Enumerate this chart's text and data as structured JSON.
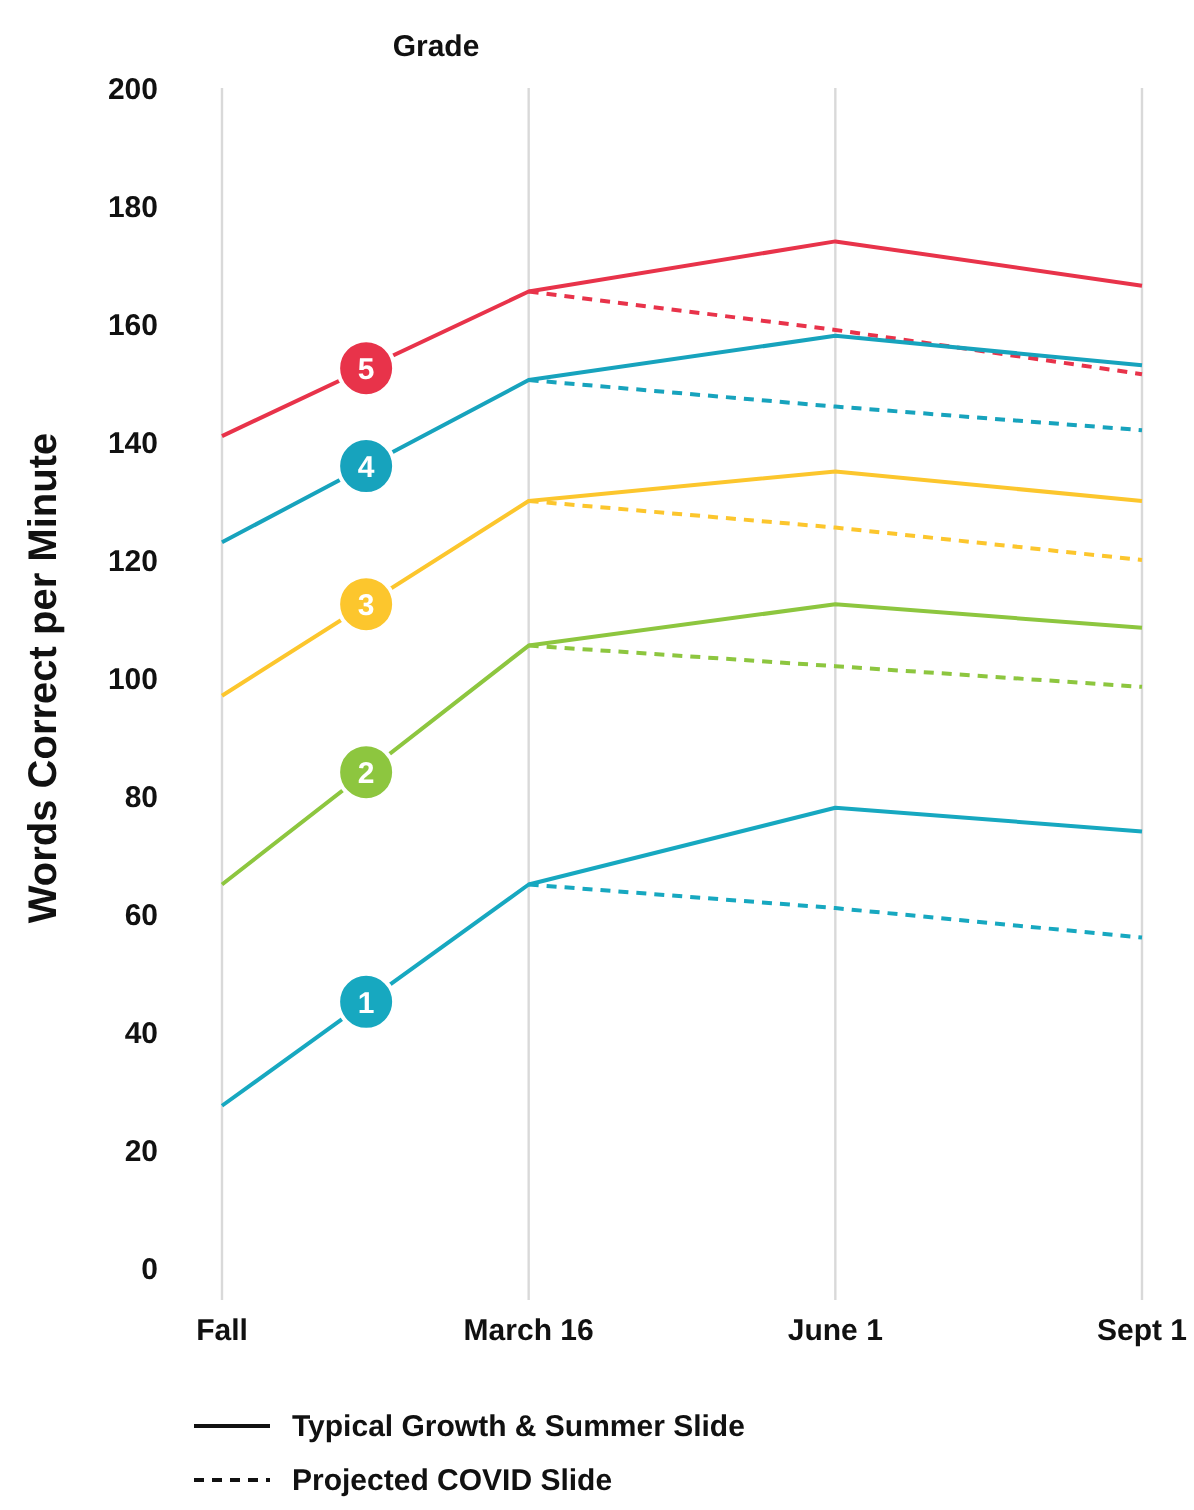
{
  "chart_data": {
    "type": "line",
    "legend_title": "Grade",
    "ylabel": "Words Correct per Minute",
    "categories": [
      "Fall",
      "March 16",
      "June 1",
      "Sept 1"
    ],
    "ylim": [
      0,
      200
    ],
    "yticks": [
      0,
      20,
      40,
      60,
      80,
      100,
      120,
      140,
      160,
      180,
      200
    ],
    "grid": "x",
    "marker": "none",
    "series": [
      {
        "name": "5",
        "color": "#e8334a",
        "values": [
          141,
          165.5,
          174,
          166.5
        ],
        "line_style": "solid"
      },
      {
        "color": "#e8334a",
        "values": [
          null,
          165.5,
          159,
          151.5
        ],
        "line_style": "dashed"
      },
      {
        "name": "4",
        "color": "#17a3bd",
        "values": [
          123,
          150.5,
          158,
          153
        ],
        "line_style": "solid"
      },
      {
        "color": "#17a3bd",
        "values": [
          null,
          150.5,
          146,
          142
        ],
        "line_style": "dashed"
      },
      {
        "name": "3",
        "color": "#fcc62d",
        "values": [
          97,
          130,
          135,
          130
        ],
        "line_style": "solid"
      },
      {
        "color": "#fcc62d",
        "values": [
          null,
          130,
          125.5,
          120
        ],
        "line_style": "dashed"
      },
      {
        "name": "2",
        "color": "#8dc63f",
        "values": [
          65,
          105.5,
          112.5,
          108.5
        ],
        "line_style": "solid"
      },
      {
        "color": "#8dc63f",
        "values": [
          null,
          105.5,
          102,
          98.5
        ],
        "line_style": "dashed"
      },
      {
        "name": "1",
        "color": "#17a8c0",
        "values": [
          27.5,
          65,
          78,
          74
        ],
        "line_style": "solid"
      },
      {
        "color": "#17a8c0",
        "values": [
          null,
          65,
          61,
          56
        ],
        "line_style": "dashed"
      }
    ],
    "annotations": [
      "Typical Growth & Summer Slide",
      "Projected COVID Slide"
    ]
  }
}
